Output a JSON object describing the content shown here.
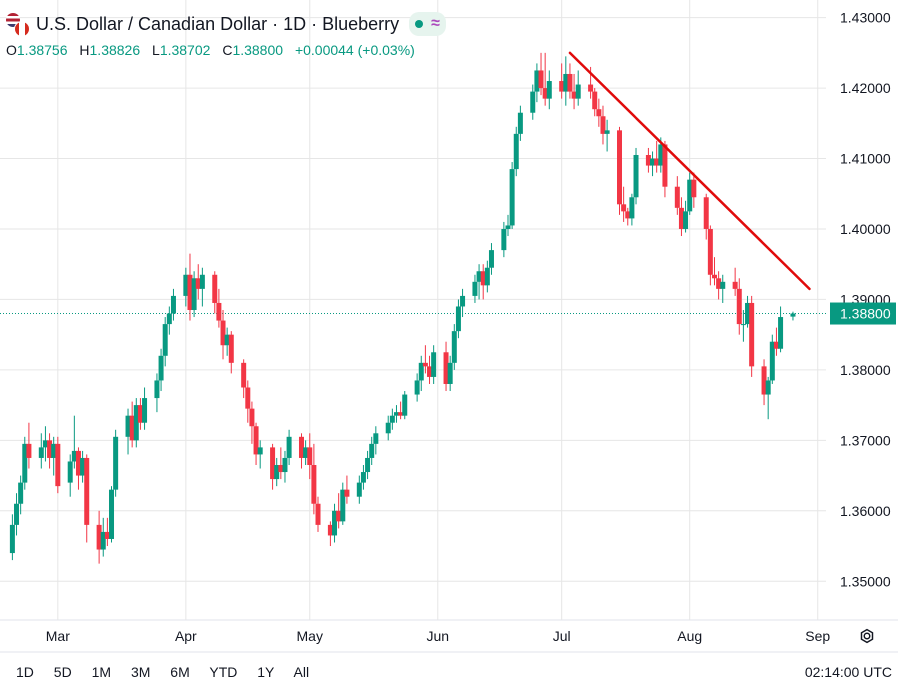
{
  "header": {
    "title": "U.S. Dollar / Canadian Dollar · 1D · Blueberry",
    "wave_glyph": "≈"
  },
  "ohlc": {
    "o_label": "O",
    "o": "1.38756",
    "h_label": "H",
    "h": "1.38826",
    "l_label": "L",
    "l": "1.38702",
    "c_label": "C",
    "c": "1.38800",
    "change": "+0.00044 (+0.03%)"
  },
  "range_buttons": [
    "1D",
    "5D",
    "1M",
    "3M",
    "6M",
    "YTD",
    "1Y",
    "All"
  ],
  "clock": "02:14:00 UTC",
  "colors": {
    "up": "#089981",
    "down": "#f23645",
    "trendline": "#e00b0b",
    "grid": "#e6e6e6",
    "price_tag": "#089981"
  },
  "icons": [
    "usd-cad-flag-icon",
    "market-open-dot-icon",
    "wave-icon",
    "settings-gear-icon"
  ],
  "chart_data": {
    "type": "candlestick",
    "title": "U.S. Dollar / Canadian Dollar · 1D · Blueberry",
    "ylim": [
      1.3445,
      1.4325
    ],
    "yticks": [
      "1.35000",
      "1.36000",
      "1.37000",
      "1.38000",
      "1.39000",
      "1.40000",
      "1.41000",
      "1.42000",
      "1.43000"
    ],
    "ytick_values": [
      1.35,
      1.36,
      1.37,
      1.38,
      1.39,
      1.4,
      1.41,
      1.42,
      1.43
    ],
    "xticks": [
      "Mar",
      "Apr",
      "May",
      "Jun",
      "Jul",
      "Aug",
      "Sep"
    ],
    "xtick_dates": [
      "2024-03-01",
      "2024-04-01",
      "2024-05-01",
      "2024-06-01",
      "2024-07-01",
      "2024-08-01",
      "2024-09-01"
    ],
    "last_price": "1.38800",
    "last_price_value": 1.388,
    "grid": true,
    "candles": [
      [
        "2024-02-19",
        1.354,
        1.3595,
        1.353,
        1.358
      ],
      [
        "2024-02-20",
        1.358,
        1.3625,
        1.3565,
        1.361
      ],
      [
        "2024-02-21",
        1.361,
        1.365,
        1.3595,
        1.364
      ],
      [
        "2024-02-22",
        1.364,
        1.3705,
        1.363,
        1.3695
      ],
      [
        "2024-02-23",
        1.3695,
        1.3725,
        1.366,
        1.3675
      ],
      [
        "2024-02-26",
        1.3675,
        1.371,
        1.366,
        1.369
      ],
      [
        "2024-02-27",
        1.369,
        1.372,
        1.367,
        1.37
      ],
      [
        "2024-02-28",
        1.37,
        1.371,
        1.366,
        1.3675
      ],
      [
        "2024-02-29",
        1.3675,
        1.3705,
        1.365,
        1.3695
      ],
      [
        "2024-03-01",
        1.3695,
        1.3705,
        1.3625,
        1.3635
      ],
      [
        "2024-03-04",
        1.364,
        1.368,
        1.362,
        1.367
      ],
      [
        "2024-03-05",
        1.367,
        1.3735,
        1.366,
        1.3685
      ],
      [
        "2024-03-06",
        1.3685,
        1.369,
        1.363,
        1.365
      ],
      [
        "2024-03-07",
        1.365,
        1.3685,
        1.364,
        1.3675
      ],
      [
        "2024-03-08",
        1.3675,
        1.368,
        1.3555,
        1.358
      ],
      [
        "2024-03-11",
        1.358,
        1.36,
        1.3525,
        1.3545
      ],
      [
        "2024-03-12",
        1.3545,
        1.359,
        1.3535,
        1.357
      ],
      [
        "2024-03-13",
        1.357,
        1.359,
        1.355,
        1.356
      ],
      [
        "2024-03-14",
        1.356,
        1.3635,
        1.3555,
        1.363
      ],
      [
        "2024-03-15",
        1.363,
        1.3715,
        1.362,
        1.3705
      ],
      [
        "2024-03-18",
        1.3705,
        1.3745,
        1.368,
        1.3735
      ],
      [
        "2024-03-19",
        1.3735,
        1.3755,
        1.369,
        1.37
      ],
      [
        "2024-03-20",
        1.37,
        1.376,
        1.369,
        1.375
      ],
      [
        "2024-03-21",
        1.375,
        1.376,
        1.3715,
        1.3725
      ],
      [
        "2024-03-22",
        1.3725,
        1.3775,
        1.3715,
        1.376
      ],
      [
        "2024-03-25",
        1.376,
        1.3795,
        1.374,
        1.3785
      ],
      [
        "2024-03-26",
        1.3785,
        1.383,
        1.377,
        1.382
      ],
      [
        "2024-03-27",
        1.382,
        1.3875,
        1.3805,
        1.3865
      ],
      [
        "2024-03-28",
        1.3865,
        1.389,
        1.385,
        1.388
      ],
      [
        "2024-03-29",
        1.388,
        1.3915,
        1.387,
        1.3905
      ],
      [
        "2024-04-01",
        1.3905,
        1.3945,
        1.389,
        1.3935
      ],
      [
        "2024-04-02",
        1.3935,
        1.3965,
        1.387,
        1.3885
      ],
      [
        "2024-04-03",
        1.3885,
        1.394,
        1.3875,
        1.393
      ],
      [
        "2024-04-04",
        1.393,
        1.395,
        1.39,
        1.3915
      ],
      [
        "2024-04-05",
        1.3915,
        1.3945,
        1.389,
        1.3935
      ],
      [
        "2024-04-08",
        1.3935,
        1.394,
        1.388,
        1.3895
      ],
      [
        "2024-04-09",
        1.3895,
        1.3915,
        1.386,
        1.387
      ],
      [
        "2024-04-10",
        1.387,
        1.3885,
        1.3815,
        1.3835
      ],
      [
        "2024-04-11",
        1.3835,
        1.386,
        1.382,
        1.385
      ],
      [
        "2024-04-12",
        1.385,
        1.3855,
        1.3795,
        1.381
      ],
      [
        "2024-04-15",
        1.381,
        1.3815,
        1.376,
        1.3775
      ],
      [
        "2024-04-16",
        1.3775,
        1.3785,
        1.3725,
        1.3745
      ],
      [
        "2024-04-17",
        1.3745,
        1.3755,
        1.3695,
        1.372
      ],
      [
        "2024-04-18",
        1.372,
        1.3725,
        1.3665,
        1.368
      ],
      [
        "2024-04-19",
        1.368,
        1.37,
        1.366,
        1.369
      ],
      [
        "2024-04-22",
        1.369,
        1.3695,
        1.363,
        1.3645
      ],
      [
        "2024-04-23",
        1.3645,
        1.3675,
        1.3635,
        1.3665
      ],
      [
        "2024-04-24",
        1.3665,
        1.369,
        1.3645,
        1.3655
      ],
      [
        "2024-04-25",
        1.3655,
        1.3685,
        1.364,
        1.3675
      ],
      [
        "2024-04-26",
        1.3675,
        1.3715,
        1.3665,
        1.3705
      ],
      [
        "2024-04-29",
        1.3705,
        1.371,
        1.366,
        1.3675
      ],
      [
        "2024-04-30",
        1.3675,
        1.37,
        1.3665,
        1.369
      ],
      [
        "2024-05-01",
        1.369,
        1.371,
        1.3645,
        1.3665
      ],
      [
        "2024-05-02",
        1.3665,
        1.3695,
        1.3595,
        1.361
      ],
      [
        "2024-05-03",
        1.361,
        1.362,
        1.357,
        1.358
      ],
      [
        "2024-05-06",
        1.358,
        1.3585,
        1.355,
        1.3565
      ],
      [
        "2024-05-07",
        1.3565,
        1.361,
        1.3555,
        1.36
      ],
      [
        "2024-05-08",
        1.36,
        1.3625,
        1.3575,
        1.3585
      ],
      [
        "2024-05-09",
        1.3585,
        1.364,
        1.358,
        1.363
      ],
      [
        "2024-05-10",
        1.363,
        1.365,
        1.361,
        1.362
      ],
      [
        "2024-05-13",
        1.362,
        1.365,
        1.361,
        1.364
      ],
      [
        "2024-05-14",
        1.364,
        1.3665,
        1.363,
        1.3655
      ],
      [
        "2024-05-15",
        1.3655,
        1.3685,
        1.3645,
        1.3675
      ],
      [
        "2024-05-16",
        1.3675,
        1.3705,
        1.3665,
        1.3695
      ],
      [
        "2024-05-17",
        1.3695,
        1.372,
        1.368,
        1.371
      ],
      [
        "2024-05-20",
        1.371,
        1.3735,
        1.37,
        1.3725
      ],
      [
        "2024-05-21",
        1.3725,
        1.3745,
        1.3715,
        1.3735
      ],
      [
        "2024-05-22",
        1.3735,
        1.375,
        1.3725,
        1.374
      ],
      [
        "2024-05-23",
        1.374,
        1.3755,
        1.373,
        1.3735
      ],
      [
        "2024-05-24",
        1.3735,
        1.377,
        1.373,
        1.3765
      ],
      [
        "2024-05-27",
        1.3765,
        1.3795,
        1.3755,
        1.3785
      ],
      [
        "2024-05-28",
        1.3785,
        1.382,
        1.377,
        1.381
      ],
      [
        "2024-05-29",
        1.381,
        1.3835,
        1.3795,
        1.3805
      ],
      [
        "2024-05-30",
        1.3805,
        1.382,
        1.378,
        1.379
      ],
      [
        "2024-05-31",
        1.379,
        1.3835,
        1.378,
        1.3825
      ],
      [
        "2024-06-03",
        1.3825,
        1.384,
        1.377,
        1.378
      ],
      [
        "2024-06-04",
        1.378,
        1.382,
        1.377,
        1.381
      ],
      [
        "2024-06-05",
        1.381,
        1.3865,
        1.38,
        1.3855
      ],
      [
        "2024-06-06",
        1.3855,
        1.39,
        1.3845,
        1.389
      ],
      [
        "2024-06-07",
        1.389,
        1.3915,
        1.3875,
        1.3905
      ],
      [
        "2024-06-10",
        1.3905,
        1.3935,
        1.3895,
        1.3925
      ],
      [
        "2024-06-11",
        1.3925,
        1.395,
        1.39,
        1.394
      ],
      [
        "2024-06-12",
        1.394,
        1.395,
        1.39,
        1.392
      ],
      [
        "2024-06-13",
        1.392,
        1.3955,
        1.391,
        1.3945
      ],
      [
        "2024-06-14",
        1.3945,
        1.398,
        1.3935,
        1.397
      ],
      [
        "2024-06-17",
        1.397,
        1.401,
        1.396,
        1.4
      ],
      [
        "2024-06-18",
        1.4,
        1.402,
        1.399,
        1.4005
      ],
      [
        "2024-06-19",
        1.4005,
        1.4095,
        1.4,
        1.4085
      ],
      [
        "2024-06-20",
        1.4085,
        1.4145,
        1.4075,
        1.4135
      ],
      [
        "2024-06-21",
        1.4135,
        1.4175,
        1.4125,
        1.4165
      ],
      [
        "2024-06-24",
        1.4165,
        1.4205,
        1.4155,
        1.4195
      ],
      [
        "2024-06-25",
        1.4195,
        1.4235,
        1.418,
        1.4225
      ],
      [
        "2024-06-26",
        1.4225,
        1.425,
        1.419,
        1.42
      ],
      [
        "2024-06-27",
        1.42,
        1.425,
        1.4175,
        1.4185
      ],
      [
        "2024-06-28",
        1.4185,
        1.4225,
        1.417,
        1.421
      ],
      [
        "2024-07-01",
        1.421,
        1.4235,
        1.4185,
        1.4195
      ],
      [
        "2024-07-02",
        1.4195,
        1.4245,
        1.4175,
        1.422
      ],
      [
        "2024-07-03",
        1.422,
        1.4235,
        1.4185,
        1.4195
      ],
      [
        "2024-07-04",
        1.4195,
        1.422,
        1.417,
        1.4185
      ],
      [
        "2024-07-05",
        1.4185,
        1.4225,
        1.4175,
        1.4205
      ],
      [
        "2024-07-08",
        1.4205,
        1.423,
        1.4185,
        1.4195
      ],
      [
        "2024-07-09",
        1.4195,
        1.42,
        1.416,
        1.417
      ],
      [
        "2024-07-10",
        1.417,
        1.4185,
        1.4145,
        1.416
      ],
      [
        "2024-07-11",
        1.416,
        1.4175,
        1.412,
        1.4135
      ],
      [
        "2024-07-12",
        1.4135,
        1.4155,
        1.411,
        1.414
      ],
      [
        "2024-07-15",
        1.414,
        1.4145,
        1.402,
        1.4035
      ],
      [
        "2024-07-16",
        1.4035,
        1.406,
        1.401,
        1.4025
      ],
      [
        "2024-07-17",
        1.4025,
        1.403,
        1.4005,
        1.4015
      ],
      [
        "2024-07-18",
        1.4015,
        1.405,
        1.4005,
        1.4045
      ],
      [
        "2024-07-19",
        1.4045,
        1.4115,
        1.4035,
        1.4105
      ],
      [
        "2024-07-22",
        1.4105,
        1.4115,
        1.408,
        1.409
      ],
      [
        "2024-07-23",
        1.409,
        1.411,
        1.4075,
        1.41
      ],
      [
        "2024-07-24",
        1.41,
        1.4125,
        1.408,
        1.409
      ],
      [
        "2024-07-25",
        1.409,
        1.413,
        1.408,
        1.412
      ],
      [
        "2024-07-26",
        1.412,
        1.4125,
        1.4045,
        1.406
      ],
      [
        "2024-07-29",
        1.406,
        1.4075,
        1.402,
        1.403
      ],
      [
        "2024-07-30",
        1.403,
        1.4045,
        1.399,
        1.4
      ],
      [
        "2024-07-31",
        1.4,
        1.404,
        1.3995,
        1.4025
      ],
      [
        "2024-08-01",
        1.4025,
        1.408,
        1.402,
        1.407
      ],
      [
        "2024-08-02",
        1.407,
        1.408,
        1.403,
        1.4045
      ],
      [
        "2024-08-05",
        1.4045,
        1.405,
        1.3985,
        1.4
      ],
      [
        "2024-08-06",
        1.4,
        1.4005,
        1.392,
        1.3935
      ],
      [
        "2024-08-07",
        1.3935,
        1.396,
        1.392,
        1.393
      ],
      [
        "2024-08-08",
        1.393,
        1.394,
        1.39,
        1.3915
      ],
      [
        "2024-08-09",
        1.3915,
        1.3935,
        1.3895,
        1.3925
      ],
      [
        "2024-08-12",
        1.3925,
        1.3945,
        1.3905,
        1.3915
      ],
      [
        "2024-08-13",
        1.3915,
        1.393,
        1.385,
        1.3865
      ],
      [
        "2024-08-14",
        1.3865,
        1.3885,
        1.384,
        1.3865
      ],
      [
        "2024-08-15",
        1.3865,
        1.3905,
        1.386,
        1.3895
      ],
      [
        "2024-08-16",
        1.3895,
        1.3905,
        1.379,
        1.3805
      ],
      [
        "2024-08-19",
        1.3805,
        1.3815,
        1.375,
        1.3765
      ],
      [
        "2024-08-20",
        1.3765,
        1.379,
        1.373,
        1.3785
      ],
      [
        "2024-08-21",
        1.3785,
        1.385,
        1.378,
        1.384
      ],
      [
        "2024-08-22",
        1.384,
        1.386,
        1.382,
        1.383
      ],
      [
        "2024-08-23",
        1.383,
        1.389,
        1.3825,
        1.3875
      ],
      [
        "2024-08-26",
        1.38756,
        1.38826,
        1.38702,
        1.388
      ]
    ],
    "trendline": {
      "from": [
        "2024-07-03",
        1.425
      ],
      "to": [
        "2024-08-30",
        1.3915
      ],
      "color": "#e00b0b"
    }
  }
}
